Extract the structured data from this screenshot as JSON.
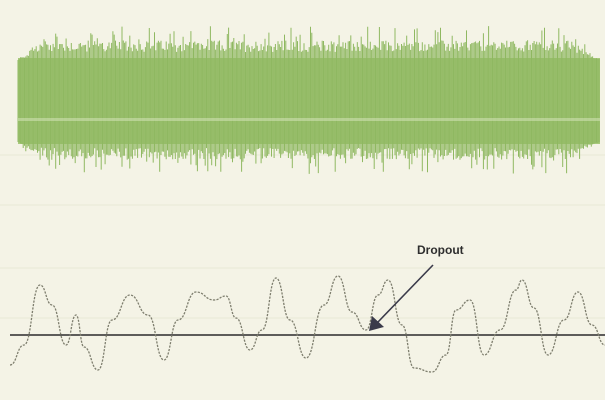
{
  "annotation": {
    "label": "Dropout"
  },
  "colors": {
    "background": "#f4f3e6",
    "envelope": "#a8c97c",
    "envelope_dark": "#8fb861",
    "trace": "#7e7e6e",
    "baseline": "#2b2b2b",
    "arrow": "#3a3a4a",
    "scan_line": "#e9e8d6"
  },
  "panels": [
    {
      "name": "envelope-signal",
      "kind": "dense noise burst (waveform envelope)"
    },
    {
      "name": "detail-trace",
      "kind": "oscillating trace with baseline"
    }
  ]
}
